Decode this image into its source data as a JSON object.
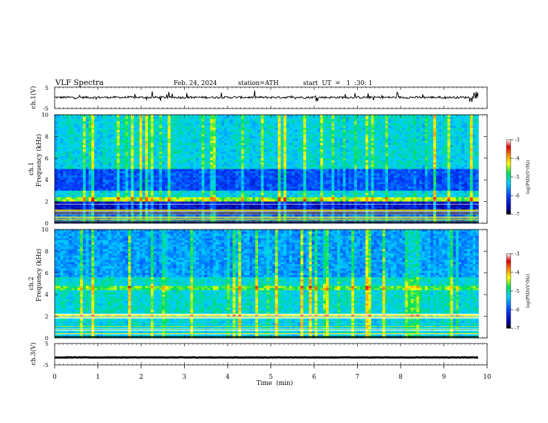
{
  "header": {
    "title": "VLF  Spectra",
    "date": "Feb. 24, 2024",
    "station": "station=ATH",
    "start_ut": "start  UT  =   1  :30: 1"
  },
  "chart_data": [
    {
      "type": "line",
      "panel": "ch1-waveform",
      "ylabel": "ch.1(V)",
      "ylim": [
        -5,
        5
      ],
      "ytick_labels": [
        "5",
        "-5"
      ],
      "xlim": [
        0,
        9.8
      ],
      "baseline": 0.2
    },
    {
      "type": "heatmap",
      "panel": "ch1-spectrogram",
      "ylabel_top": "ch.1",
      "ylabel": "Frequency (kHz)",
      "ylim": [
        0,
        10
      ],
      "ytick_labels": [
        "0",
        "2",
        "4",
        "6",
        "8",
        "10"
      ],
      "xlim": [
        0,
        9.8
      ],
      "colorbar": {
        "label": "log(PSD)(V²/Hz)",
        "range": [
          -7,
          -3
        ],
        "tick_labels": [
          "-3",
          "-4",
          "-5",
          "-6",
          "-7"
        ]
      }
    },
    {
      "type": "heatmap",
      "panel": "ch2-spectrogram",
      "ylabel_top": "ch.2",
      "ylabel": "Frequency (kHz)",
      "ylim": [
        0,
        10
      ],
      "ytick_labels": [
        "0",
        "2",
        "4",
        "6",
        "8",
        "10"
      ],
      "xlim": [
        0,
        9.8
      ],
      "colorbar": {
        "label": "log(PSD)(V²/Hz)",
        "range": [
          -7,
          -3
        ],
        "tick_labels": [
          "-3",
          "-4",
          "-5",
          "-6",
          "-7"
        ]
      }
    },
    {
      "type": "line",
      "panel": "ch3-waveform",
      "ylabel": "ch.3(V)",
      "ylim": [
        -5,
        5
      ],
      "ytick_labels": [
        "5",
        "-5"
      ],
      "xlim": [
        0,
        9.8
      ],
      "baseline": -1.5
    }
  ],
  "xaxis": {
    "label": "Time  (min)",
    "range": [
      0,
      10
    ],
    "tick_labels": [
      "0",
      "1",
      "2",
      "3",
      "4",
      "5",
      "6",
      "7",
      "8",
      "9",
      "10"
    ]
  }
}
